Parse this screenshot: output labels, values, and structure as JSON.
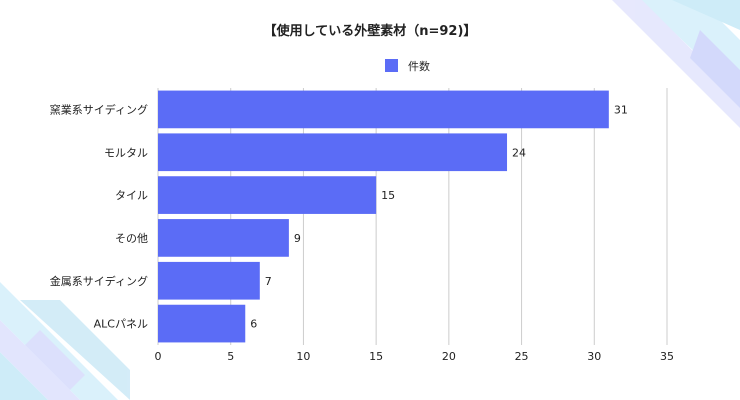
{
  "chart_data": {
    "type": "bar",
    "orientation": "horizontal",
    "title": "【使用している外壁素材（n=92)】",
    "categories": [
      "窯業系サイディング",
      "モルタル",
      "タイル",
      "その他",
      "金属系サイディング",
      "ALCパネル"
    ],
    "series": [
      {
        "name": "件数",
        "values": [
          31,
          24,
          15,
          9,
          7,
          6
        ]
      }
    ],
    "xlim": [
      0,
      35
    ],
    "x_ticks": [
      0,
      5,
      10,
      15,
      20,
      25,
      30,
      35
    ],
    "grid": true,
    "legend_position": "top-center",
    "data_labels": true,
    "bar_color": "#5b6cf6",
    "grid_color": "#cccccc"
  }
}
